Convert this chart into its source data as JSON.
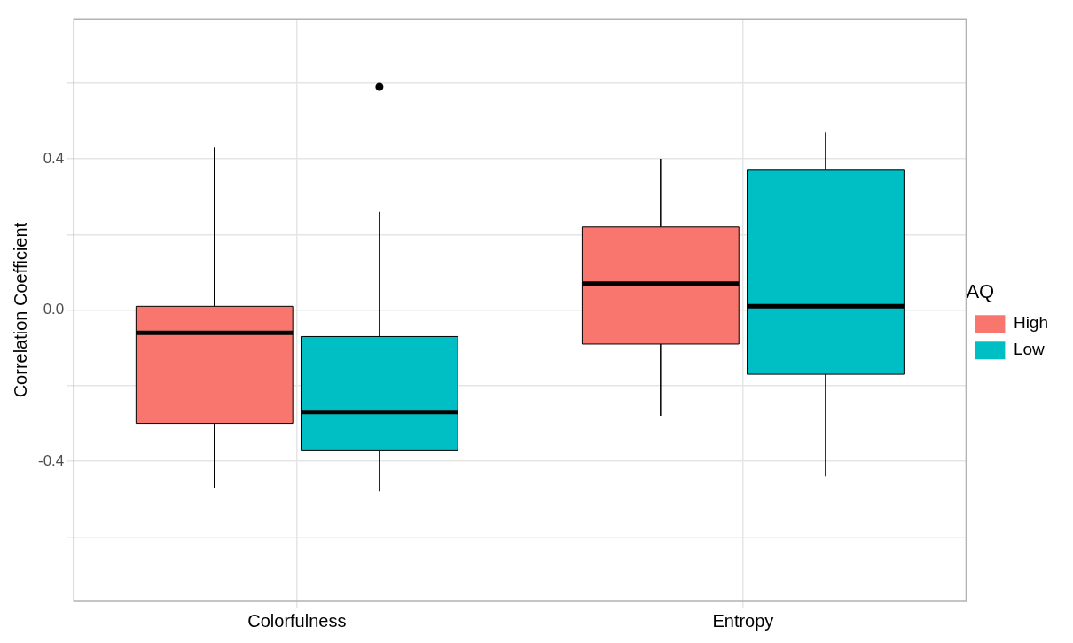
{
  "chart_data": {
    "type": "box",
    "ylabel": "Correlation Coefficient",
    "legend_title": "AQ",
    "legend": "right",
    "grid": true,
    "categories": [
      "Colorfulness",
      "Entropy"
    ],
    "ylim": [
      -0.77,
      0.77
    ],
    "yticks": [
      {
        "value": -0.6,
        "label": null
      },
      {
        "value": -0.4,
        "label": "-0.4"
      },
      {
        "value": -0.2,
        "label": null
      },
      {
        "value": 0,
        "label": "0.0"
      },
      {
        "value": 0.2,
        "label": null
      },
      {
        "value": 0.4,
        "label": "0.4"
      },
      {
        "value": 0.6,
        "label": null
      }
    ],
    "series": [
      {
        "name": "High",
        "color": "#f8766d",
        "boxes": [
          {
            "low": -0.47,
            "q1": -0.3,
            "median": -0.06,
            "q3": 0.01,
            "high": 0.43
          },
          {
            "low": -0.28,
            "q1": -0.09,
            "median": 0.07,
            "q3": 0.22,
            "high": 0.4
          }
        ]
      },
      {
        "name": "Low",
        "color": "#00bfc4",
        "boxes": [
          {
            "low": -0.48,
            "q1": -0.37,
            "median": -0.27,
            "q3": -0.07,
            "high": 0.26,
            "outliers": [
              0.59
            ]
          },
          {
            "low": -0.44,
            "q1": -0.17,
            "median": 0.01,
            "q3": 0.37,
            "high": 0.47
          }
        ]
      }
    ]
  }
}
